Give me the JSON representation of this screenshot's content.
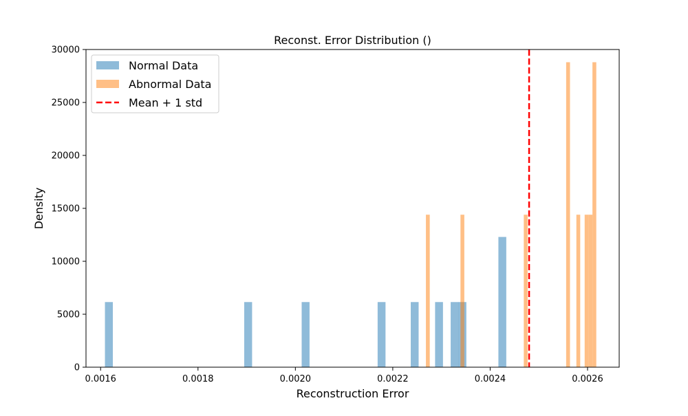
{
  "chart_data": {
    "type": "bar",
    "title": "Reconst. Error Distribution ()",
    "xlabel": "Reconstruction Error",
    "ylabel": "Density",
    "xlim": [
      0.00157,
      0.002665
    ],
    "ylim": [
      0,
      30000
    ],
    "x_ticks": [
      0.0016,
      0.0018,
      0.002,
      0.0022,
      0.0024,
      0.0026
    ],
    "x_tick_labels": [
      "0.0016",
      "0.0018",
      "0.0020",
      "0.0022",
      "0.0024",
      "0.0026"
    ],
    "y_ticks": [
      0,
      5000,
      10000,
      15000,
      20000,
      25000,
      30000
    ],
    "y_tick_labels": [
      "0",
      "5000",
      "10000",
      "15000",
      "20000",
      "25000",
      "30000"
    ],
    "grid": false,
    "legend_position": "top-left",
    "series": [
      {
        "name": "Normal Data",
        "color": "#1f77b4",
        "opacity": 0.5,
        "bin_width": 1.62e-05,
        "bars": [
          {
            "x": 0.001617,
            "value": 6150
          },
          {
            "x": 0.001903,
            "value": 6150
          },
          {
            "x": 0.002021,
            "value": 6150
          },
          {
            "x": 0.002177,
            "value": 6150
          },
          {
            "x": 0.002245,
            "value": 6150
          },
          {
            "x": 0.002295,
            "value": 6150
          },
          {
            "x": 0.002327,
            "value": 6150
          },
          {
            "x": 0.002343,
            "value": 6150
          },
          {
            "x": 0.002425,
            "value": 12300
          }
        ]
      },
      {
        "name": "Abnormal Data",
        "color": "#ff7f0e",
        "opacity": 0.5,
        "bin_width": 7.9e-06,
        "bars": [
          {
            "x": 0.002272,
            "value": 14400
          },
          {
            "x": 0.002343,
            "value": 14400
          },
          {
            "x": 0.002473,
            "value": 14400
          },
          {
            "x": 0.00256,
            "value": 28800
          },
          {
            "x": 0.002581,
            "value": 14400
          },
          {
            "x": 0.002598,
            "value": 14400
          },
          {
            "x": 0.002606,
            "value": 14400
          },
          {
            "x": 0.002614,
            "value": 28800
          }
        ]
      }
    ],
    "reference_line": {
      "name": "Mean + 1 std",
      "x": 0.00248,
      "color": "#ff0000",
      "style": "dashed"
    }
  }
}
